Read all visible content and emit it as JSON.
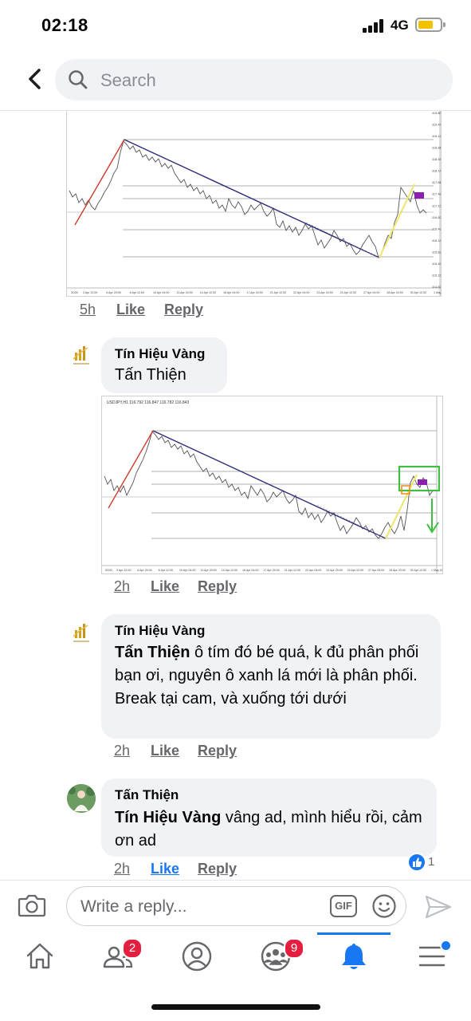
{
  "status": {
    "time": "02:18",
    "network": "4G"
  },
  "search": {
    "placeholder": "Search"
  },
  "chart1": {
    "bottom_label": "2020",
    "y_ticks": [
      "119.800",
      "119.470",
      "119.140",
      "118.810",
      "118.480",
      "118.140",
      "117.810",
      "117.480",
      "117.150",
      "116.820",
      "116.490",
      "116.150",
      "115.820",
      "115.490",
      "115.150",
      "114.820"
    ],
    "x_ticks": [
      "3 Apr 12:00",
      "6 Apr 20:00",
      "8 Apr 12:00",
      "10 Apr 04:00",
      "13 Apr 20:00",
      "14 Apr 12:00",
      "16 Apr 04:00",
      "17 Apr 20:00",
      "21 Apr 12:00",
      "22 Apr 04:00",
      "23 Apr 20:00",
      "24 Apr 12:00",
      "27 Apr 04:00",
      "28 Apr 20:00",
      "30 Apr 12:00",
      "1 May 04:00"
    ]
  },
  "chart2": {
    "header_text": "USDJPY,H1  116.792 116.847 116.782 116.843",
    "bottom_label": "2020",
    "x_ticks": [
      "3 Apr 12:00",
      "6 Apr 20:00",
      "8 Apr 12:00",
      "10 Apr 04:00",
      "13 Apr 20:00",
      "14 Apr 12:00",
      "16 Apr 04:00",
      "17 Apr 20:00",
      "21 Apr 12:00",
      "22 Apr 04:00",
      "23 Apr 20:00",
      "24 Apr 12:00",
      "27 Apr 04:00",
      "28 Apr 20:00",
      "30 Apr 12:00",
      "1 May 04:00"
    ]
  },
  "comment_top_actions": {
    "time": "5h",
    "like": "Like",
    "reply": "Reply"
  },
  "comments": [
    {
      "author": "Tín Hiệu Vàng",
      "text": "Tấn Thiện",
      "time": "2h",
      "like": "Like",
      "reply": "Reply"
    },
    {
      "author": "Tín Hiệu Vàng",
      "mention": "Tấn Thiện",
      "text": " ô tím đó bé quá, k đủ phân phối bạn ơi, nguyên ô xanh lá mới là phân phối. Break tại cam, và xuống tới dưới",
      "time": "2h",
      "like": "Like",
      "reply": "Reply"
    },
    {
      "author": "Tấn Thiện",
      "mention": "Tín Hiệu Vàng",
      "text": " vâng ad, mình hiểu rồi, cảm ơn ad",
      "time": "2h",
      "like": "Like",
      "reply": "Reply",
      "reaction_count": "1"
    }
  ],
  "composer": {
    "placeholder": "Write a reply...",
    "gif": "GIF"
  },
  "tabbar": {
    "friends_badge": "2",
    "groups_badge": "9"
  },
  "colors": {
    "accent": "#1877f2",
    "badge": "#e41e3f",
    "bubble": "#f0f2f5"
  }
}
